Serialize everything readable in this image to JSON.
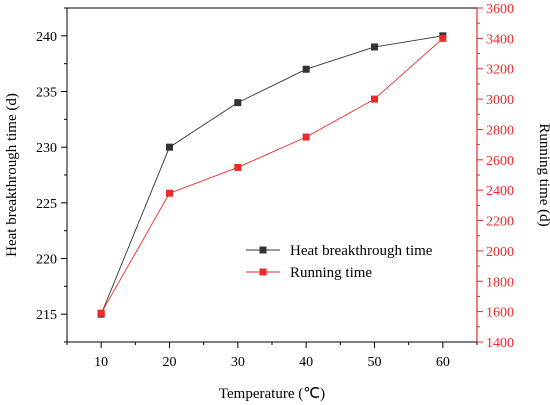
{
  "chart_data": {
    "type": "line",
    "x": [
      10,
      20,
      30,
      40,
      50,
      60
    ],
    "xlabel": "Temperature (℃)",
    "xlim": [
      5,
      65
    ],
    "xticks": [
      "10",
      "20",
      "30",
      "40",
      "50",
      "60"
    ],
    "series": [
      {
        "name": "Heat breakthrough time",
        "axis": "left",
        "values": [
          215,
          230,
          234,
          237,
          239,
          240
        ],
        "color": "#333333",
        "marker": "square"
      },
      {
        "name": "Running time",
        "axis": "right",
        "values": [
          1590,
          2380,
          2550,
          2750,
          3000,
          3400
        ],
        "color": "#ee2a2a",
        "marker": "square"
      }
    ],
    "ylabel_left": "Heat breakthrough time (d)",
    "ylim_left": [
      212.5,
      242.5
    ],
    "yticks_left": [
      "215",
      "220",
      "225",
      "230",
      "235",
      "240"
    ],
    "ylabel_right": "Running time (d)",
    "ylim_right": [
      1400,
      3600
    ],
    "yticks_right": [
      "1400",
      "1600",
      "1800",
      "2000",
      "2200",
      "2400",
      "2600",
      "2800",
      "3000",
      "3200",
      "3400",
      "3600"
    ],
    "right_axis_color": "#ee2a2a",
    "legend_position": "center-right",
    "grid": false
  }
}
